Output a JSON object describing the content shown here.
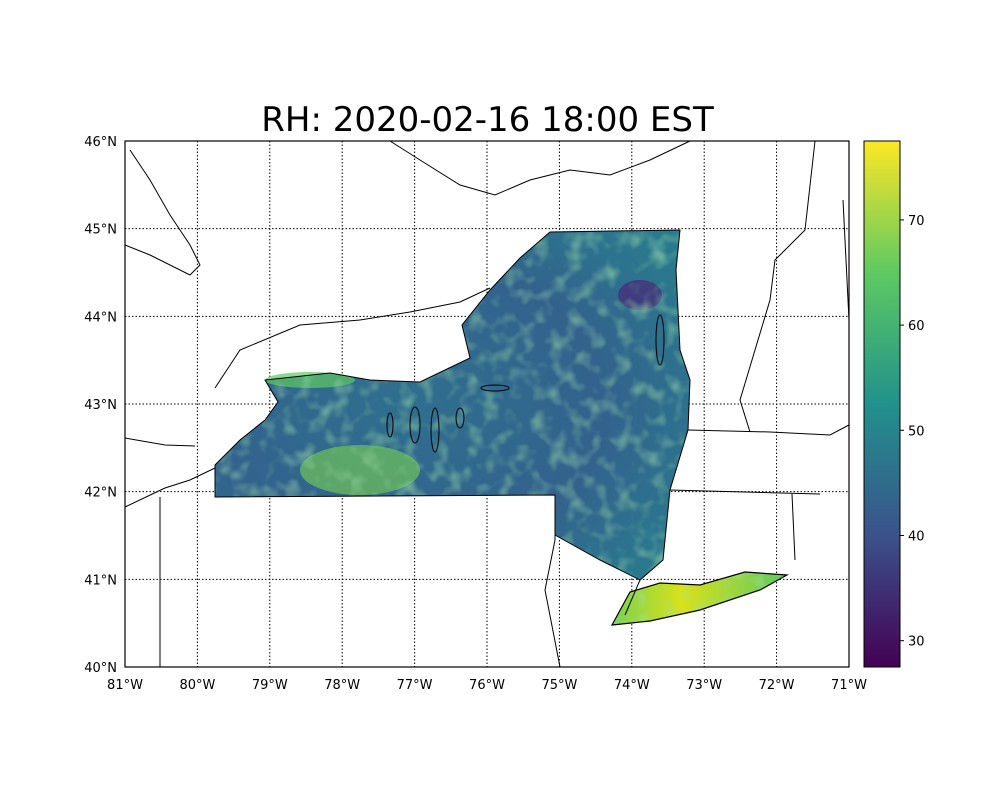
{
  "title": "RH: 2020-02-16 18:00 EST",
  "chart_data": {
    "type": "heatmap",
    "title": "RH: 2020-02-16 18:00 EST",
    "variable": "RH",
    "region": "New York State",
    "xlim": [
      -81,
      -71
    ],
    "ylim": [
      40,
      46
    ],
    "x_ticks": [
      "81°W",
      "80°W",
      "79°W",
      "78°W",
      "77°W",
      "76°W",
      "75°W",
      "74°W",
      "73°W",
      "72°W",
      "71°W"
    ],
    "y_ticks": [
      "40°N",
      "41°N",
      "42°N",
      "43°N",
      "44°N",
      "45°N",
      "46°N"
    ],
    "grid": true,
    "colormap": "viridis",
    "colorbar": {
      "range": [
        27.5,
        77.5
      ],
      "ticks": [
        "30",
        "40",
        "50",
        "60",
        "70"
      ]
    },
    "observations": {
      "typical_range": [
        40,
        60
      ],
      "high_regions": [
        "Long Island ~70-75",
        "Southern Tier near 78°W ~60-65",
        "Lake Ontario shore ~60"
      ],
      "low_regions": [
        "Adirondacks near 44.3°N 73.9°W ~30-35"
      ]
    }
  }
}
